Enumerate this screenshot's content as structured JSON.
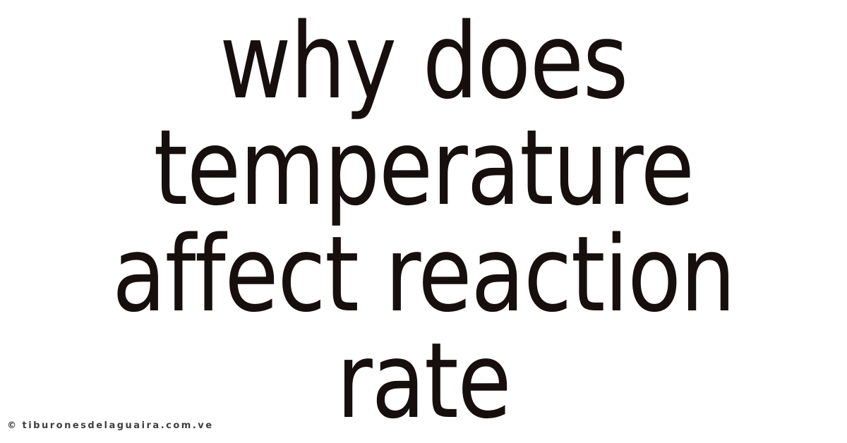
{
  "page": {
    "background_color": "#ffffff",
    "title_color": "#160f0d",
    "watermark_color": "#3f3f3f"
  },
  "title": {
    "lines": [
      "why does",
      "temperature",
      "affect reaction",
      "rate"
    ]
  },
  "watermark": {
    "symbol": "©",
    "text": "tiburonesdelaguaira.com.ve"
  }
}
